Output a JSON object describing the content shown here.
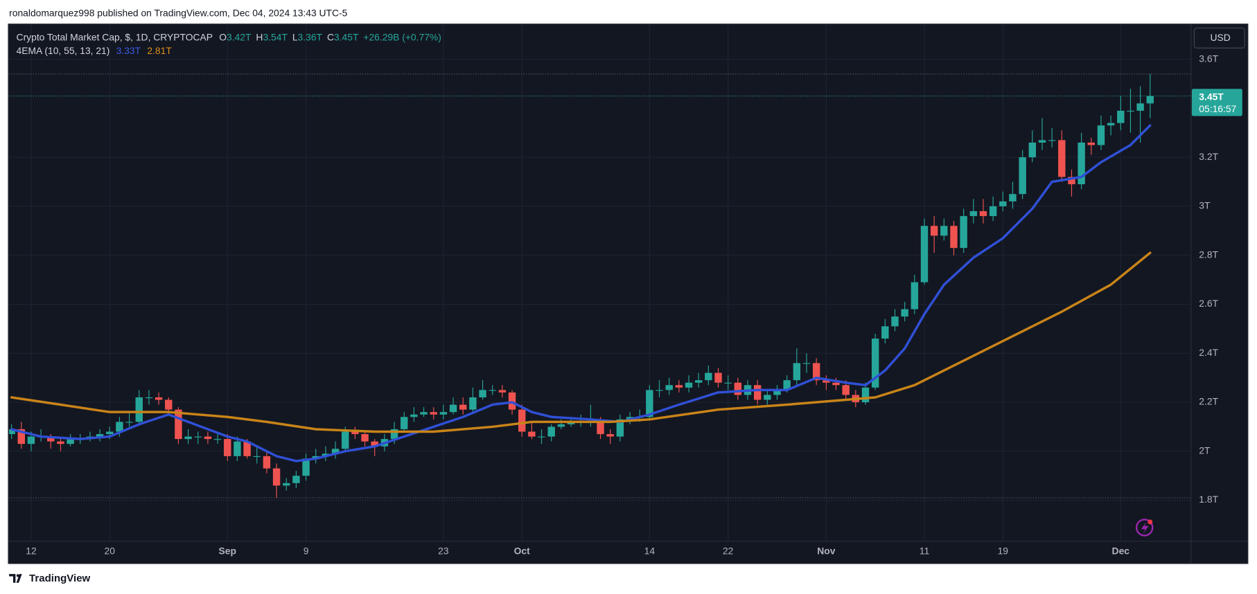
{
  "chart_data": {
    "type": "candlestick",
    "attribution": "ronaldomarquez998 published on TradingView.com, Dec 04, 2024 13:43 UTC-5",
    "footer": "TradingView",
    "currency": "USD",
    "legend": {
      "symbol": "Crypto Total Market Cap, $, 1D, CRYPTOCAP",
      "open_key": "O",
      "open": "3.42T",
      "high_key": "H",
      "high": "3.54T",
      "low_key": "L",
      "low": "3.36T",
      "close_key": "C",
      "close": "3.45T",
      "change": "+26.29B (+0.77%)"
    },
    "indicator": "4EMA (10, 55, 13, 21)",
    "price_tag": {
      "label": "3.45T",
      "countdown": "05:16:57"
    },
    "up_color": "#26a69a",
    "down_color": "#ef5350",
    "grid": true,
    "xlim": [
      "2024-08-10",
      "2024-12-08"
    ],
    "ylim": [
      1.633,
      3.744
    ],
    "yticks": [
      {
        "value": 3.6,
        "label": "3.6T"
      },
      {
        "value": 3.2,
        "label": "3.2T"
      },
      {
        "value": 3,
        "label": "3T"
      },
      {
        "value": 2.8,
        "label": "2.8T"
      },
      {
        "value": 2.6,
        "label": "2.6T"
      },
      {
        "value": 2.4,
        "label": "2.4T"
      },
      {
        "value": 2.2,
        "label": "2.2T"
      },
      {
        "value": 2,
        "label": "2T"
      },
      {
        "value": 1.8,
        "label": "1.8T"
      }
    ],
    "xticks": [
      {
        "value": "2024-08-12",
        "label": "12"
      },
      {
        "value": "2024-08-20",
        "label": "20"
      },
      {
        "value": "2024-09-01",
        "label": "Sep"
      },
      {
        "value": "2024-09-09",
        "label": "9"
      },
      {
        "value": "2024-09-23",
        "label": "23"
      },
      {
        "value": "2024-10-01",
        "label": "Oct"
      },
      {
        "value": "2024-10-14",
        "label": "14"
      },
      {
        "value": "2024-10-22",
        "label": "22"
      },
      {
        "value": "2024-11-01",
        "label": "Nov"
      },
      {
        "value": "2024-11-11",
        "label": "11"
      },
      {
        "value": "2024-11-19",
        "label": "19"
      },
      {
        "value": "2024-12-01",
        "label": "Dec"
      }
    ],
    "x": [
      "2024-08-10",
      "2024-08-11",
      "2024-08-12",
      "2024-08-13",
      "2024-08-14",
      "2024-08-15",
      "2024-08-16",
      "2024-08-17",
      "2024-08-18",
      "2024-08-19",
      "2024-08-20",
      "2024-08-21",
      "2024-08-22",
      "2024-08-23",
      "2024-08-24",
      "2024-08-25",
      "2024-08-26",
      "2024-08-27",
      "2024-08-28",
      "2024-08-29",
      "2024-08-30",
      "2024-08-31",
      "2024-09-01",
      "2024-09-02",
      "2024-09-03",
      "2024-09-04",
      "2024-09-05",
      "2024-09-06",
      "2024-09-07",
      "2024-09-08",
      "2024-09-09",
      "2024-09-10",
      "2024-09-11",
      "2024-09-12",
      "2024-09-13",
      "2024-09-14",
      "2024-09-15",
      "2024-09-16",
      "2024-09-17",
      "2024-09-18",
      "2024-09-19",
      "2024-09-20",
      "2024-09-21",
      "2024-09-22",
      "2024-09-23",
      "2024-09-24",
      "2024-09-25",
      "2024-09-26",
      "2024-09-27",
      "2024-09-28",
      "2024-09-29",
      "2024-09-30",
      "2024-10-01",
      "2024-10-02",
      "2024-10-03",
      "2024-10-04",
      "2024-10-05",
      "2024-10-06",
      "2024-10-07",
      "2024-10-08",
      "2024-10-09",
      "2024-10-10",
      "2024-10-11",
      "2024-10-12",
      "2024-10-13",
      "2024-10-14",
      "2024-10-15",
      "2024-10-16",
      "2024-10-17",
      "2024-10-18",
      "2024-10-19",
      "2024-10-20",
      "2024-10-21",
      "2024-10-22",
      "2024-10-23",
      "2024-10-24",
      "2024-10-25",
      "2024-10-26",
      "2024-10-27",
      "2024-10-28",
      "2024-10-29",
      "2024-10-30",
      "2024-10-31",
      "2024-11-01",
      "2024-11-02",
      "2024-11-03",
      "2024-11-04",
      "2024-11-05",
      "2024-11-06",
      "2024-11-07",
      "2024-11-08",
      "2024-11-09",
      "2024-11-10",
      "2024-11-11",
      "2024-11-12",
      "2024-11-13",
      "2024-11-14",
      "2024-11-15",
      "2024-11-16",
      "2024-11-17",
      "2024-11-18",
      "2024-11-19",
      "2024-11-20",
      "2024-11-21",
      "2024-11-22",
      "2024-11-23",
      "2024-11-24",
      "2024-11-25",
      "2024-11-26",
      "2024-11-27",
      "2024-11-28",
      "2024-11-29",
      "2024-11-30",
      "2024-12-01",
      "2024-12-02",
      "2024-12-03",
      "2024-12-04"
    ],
    "open": [
      2.07,
      2.09,
      2.03,
      2.06,
      2.06,
      2.04,
      2.03,
      2.05,
      2.05,
      2.06,
      2.07,
      2.08,
      2.12,
      2.12,
      2.22,
      2.22,
      2.21,
      2.17,
      2.05,
      2.06,
      2.06,
      2.05,
      2.05,
      1.98,
      2.04,
      1.98,
      1.98,
      1.93,
      1.86,
      1.87,
      1.9,
      1.97,
      1.98,
      1.99,
      2.01,
      2.08,
      2.07,
      2.04,
      2.02,
      2.05,
      2.09,
      2.14,
      2.15,
      2.16,
      2.15,
      2.16,
      2.19,
      2.17,
      2.22,
      2.25,
      2.25,
      2.24,
      2.17,
      2.08,
      2.06,
      2.06,
      2.1,
      2.11,
      2.12,
      2.12,
      2.12,
      2.07,
      2.06,
      2.13,
      2.14,
      2.14,
      2.25,
      2.25,
      2.27,
      2.26,
      2.28,
      2.29,
      2.32,
      2.28,
      2.28,
      2.23,
      2.27,
      2.21,
      2.23,
      2.25,
      2.29,
      2.36,
      2.36,
      2.29,
      2.28,
      2.27,
      2.23,
      2.2,
      2.26,
      2.46,
      2.51,
      2.55,
      2.58,
      2.69,
      2.92,
      2.88,
      2.92,
      2.83,
      2.96,
      2.98,
      2.96,
      3.0,
      3.02,
      3.05,
      3.2,
      3.26,
      3.27,
      3.27,
      3.12,
      3.09,
      3.26,
      3.25,
      3.33,
      3.34,
      3.39,
      3.39,
      3.42
    ],
    "high": [
      2.11,
      2.12,
      2.08,
      2.09,
      2.07,
      2.06,
      2.07,
      2.07,
      2.08,
      2.09,
      2.1,
      2.14,
      2.16,
      2.25,
      2.25,
      2.24,
      2.22,
      2.18,
      2.09,
      2.08,
      2.08,
      2.07,
      2.07,
      2.06,
      2.05,
      2.02,
      2.0,
      1.95,
      1.89,
      1.92,
      1.99,
      2.01,
      2.02,
      2.04,
      2.1,
      2.1,
      2.08,
      2.05,
      2.07,
      2.12,
      2.16,
      2.18,
      2.18,
      2.18,
      2.19,
      2.22,
      2.22,
      2.26,
      2.29,
      2.27,
      2.27,
      2.25,
      2.19,
      2.12,
      2.09,
      2.11,
      2.13,
      2.14,
      2.15,
      2.19,
      2.14,
      2.09,
      2.15,
      2.16,
      2.17,
      2.27,
      2.29,
      2.3,
      2.29,
      2.31,
      2.32,
      2.35,
      2.34,
      2.31,
      2.3,
      2.29,
      2.29,
      2.25,
      2.27,
      2.31,
      2.42,
      2.4,
      2.38,
      2.31,
      2.3,
      2.29,
      2.25,
      2.28,
      2.48,
      2.54,
      2.58,
      2.61,
      2.72,
      2.95,
      2.96,
      2.95,
      2.94,
      2.99,
      3.03,
      3.03,
      3.04,
      3.06,
      3.1,
      3.23,
      3.31,
      3.36,
      3.32,
      3.31,
      3.15,
      3.3,
      3.28,
      3.37,
      3.37,
      3.45,
      3.48,
      3.49,
      3.54
    ],
    "low": [
      2.05,
      2.01,
      2.0,
      2.04,
      2.01,
      2.0,
      2.02,
      2.03,
      2.04,
      2.04,
      2.05,
      2.06,
      2.1,
      2.11,
      2.19,
      2.19,
      2.15,
      2.03,
      2.03,
      2.03,
      2.03,
      2.03,
      1.96,
      1.96,
      1.97,
      1.95,
      1.91,
      1.81,
      1.84,
      1.85,
      1.88,
      1.95,
      1.96,
      1.97,
      2.0,
      2.05,
      2.02,
      1.98,
      2.0,
      2.03,
      2.08,
      2.12,
      2.14,
      2.13,
      2.13,
      2.15,
      2.15,
      2.16,
      2.21,
      2.23,
      2.22,
      2.15,
      2.06,
      2.05,
      2.03,
      2.04,
      2.09,
      2.1,
      2.1,
      2.1,
      2.05,
      2.03,
      2.04,
      2.11,
      2.12,
      2.13,
      2.22,
      2.23,
      2.24,
      2.24,
      2.26,
      2.27,
      2.26,
      2.25,
      2.21,
      2.21,
      2.19,
      2.19,
      2.21,
      2.24,
      2.27,
      2.32,
      2.27,
      2.25,
      2.25,
      2.21,
      2.18,
      2.19,
      2.25,
      2.44,
      2.49,
      2.53,
      2.56,
      2.68,
      2.81,
      2.86,
      2.8,
      2.81,
      2.93,
      2.93,
      2.94,
      2.98,
      2.99,
      3.03,
      3.18,
      3.23,
      3.24,
      3.1,
      3.04,
      3.07,
      3.21,
      3.23,
      3.29,
      3.31,
      3.3,
      3.26,
      3.36
    ],
    "close": [
      2.09,
      2.03,
      2.06,
      2.06,
      2.04,
      2.03,
      2.05,
      2.05,
      2.06,
      2.07,
      2.08,
      2.12,
      2.12,
      2.22,
      2.22,
      2.21,
      2.17,
      2.05,
      2.06,
      2.06,
      2.05,
      2.05,
      1.98,
      2.04,
      1.98,
      1.98,
      1.93,
      1.86,
      1.87,
      1.9,
      1.97,
      1.98,
      1.99,
      2.01,
      2.08,
      2.07,
      2.04,
      2.02,
      2.05,
      2.09,
      2.14,
      2.15,
      2.16,
      2.15,
      2.16,
      2.19,
      2.17,
      2.22,
      2.25,
      2.25,
      2.24,
      2.17,
      2.08,
      2.06,
      2.06,
      2.1,
      2.11,
      2.12,
      2.12,
      2.12,
      2.07,
      2.06,
      2.13,
      2.14,
      2.14,
      2.25,
      2.25,
      2.27,
      2.26,
      2.28,
      2.29,
      2.32,
      2.28,
      2.28,
      2.23,
      2.27,
      2.21,
      2.23,
      2.25,
      2.29,
      2.36,
      2.36,
      2.29,
      2.28,
      2.27,
      2.23,
      2.2,
      2.26,
      2.46,
      2.51,
      2.55,
      2.58,
      2.69,
      2.92,
      2.88,
      2.92,
      2.83,
      2.96,
      2.98,
      2.96,
      3.0,
      3.02,
      3.05,
      3.2,
      3.26,
      3.27,
      3.27,
      3.12,
      3.09,
      3.26,
      3.25,
      3.33,
      3.34,
      3.39,
      3.39,
      3.42,
      3.45
    ],
    "series": [
      {
        "color": "#3050d6",
        "legend_value": "3.33T",
        "x": [
          "2024-08-10",
          "2024-08-13",
          "2024-08-17",
          "2024-08-20",
          "2024-08-23",
          "2024-08-26",
          "2024-08-28",
          "2024-09-01",
          "2024-09-03",
          "2024-09-06",
          "2024-09-08",
          "2024-09-10",
          "2024-09-13",
          "2024-09-16",
          "2024-09-19",
          "2024-09-22",
          "2024-09-25",
          "2024-09-28",
          "2024-09-30",
          "2024-10-02",
          "2024-10-04",
          "2024-10-08",
          "2024-10-11",
          "2024-10-14",
          "2024-10-17",
          "2024-10-21",
          "2024-10-25",
          "2024-10-28",
          "2024-10-31",
          "2024-11-03",
          "2024-11-05",
          "2024-11-07",
          "2024-11-09",
          "2024-11-11",
          "2024-11-13",
          "2024-11-16",
          "2024-11-19",
          "2024-11-22",
          "2024-11-24",
          "2024-11-27",
          "2024-11-29",
          "2024-12-02",
          "2024-12-04"
        ],
        "values": [
          2.09,
          2.06,
          2.05,
          2.06,
          2.11,
          2.15,
          2.12,
          2.06,
          2.04,
          1.98,
          1.96,
          1.97,
          2.0,
          2.02,
          2.06,
          2.1,
          2.14,
          2.19,
          2.2,
          2.16,
          2.14,
          2.13,
          2.12,
          2.15,
          2.19,
          2.24,
          2.25,
          2.25,
          2.3,
          2.28,
          2.27,
          2.33,
          2.42,
          2.56,
          2.68,
          2.79,
          2.87,
          2.99,
          3.1,
          3.12,
          3.18,
          3.25,
          3.33
        ]
      },
      {
        "color": "#c98418",
        "legend_value": "2.81T",
        "x": [
          "2024-08-10",
          "2024-08-15",
          "2024-08-20",
          "2024-08-26",
          "2024-09-01",
          "2024-09-05",
          "2024-09-10",
          "2024-09-16",
          "2024-09-22",
          "2024-09-28",
          "2024-10-02",
          "2024-10-10",
          "2024-10-14",
          "2024-10-21",
          "2024-10-28",
          "2024-11-03",
          "2024-11-06",
          "2024-11-10",
          "2024-11-15",
          "2024-11-20",
          "2024-11-25",
          "2024-11-30",
          "2024-12-04"
        ],
        "values": [
          2.22,
          2.19,
          2.16,
          2.16,
          2.14,
          2.12,
          2.09,
          2.08,
          2.08,
          2.1,
          2.12,
          2.12,
          2.13,
          2.17,
          2.19,
          2.21,
          2.22,
          2.27,
          2.37,
          2.47,
          2.57,
          2.68,
          2.81
        ]
      }
    ]
  }
}
